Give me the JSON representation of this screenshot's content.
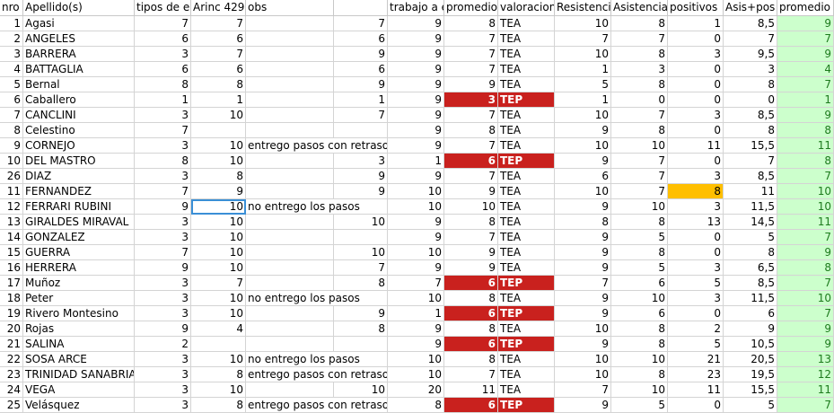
{
  "colors": {
    "green_fill": "#ccffcc",
    "green_text": "#1e7b1e",
    "tep_fill": "#c9211e",
    "highlight_orange": "#ffbf00",
    "selection": "#3a8fd6"
  },
  "headers": [
    "nro",
    "Apellido(s)",
    "tipos de en",
    "Arinc 429",
    "obs",
    "",
    "trabajo a e",
    "promedio",
    "valoracion",
    "Resistencia",
    "Asistencia",
    "positivos",
    "Asis+pos",
    "promedio"
  ],
  "rows": [
    {
      "nro": "1",
      "apellido": "Agasi",
      "tipos": "7",
      "arinc": "7",
      "obs": "",
      "obs2": "7",
      "trabajo": "9",
      "promedio": "8",
      "valoracion": "TEA",
      "resistencia": "10",
      "asistencia": "8",
      "positivos": "1",
      "asispos": "8,5",
      "promedio2": "9"
    },
    {
      "nro": "2",
      "apellido": "ANGELES",
      "tipos": "6",
      "arinc": "6",
      "obs": "",
      "obs2": "6",
      "trabajo": "9",
      "promedio": "7",
      "valoracion": "TEA",
      "resistencia": "7",
      "asistencia": "7",
      "positivos": "0",
      "asispos": "7",
      "promedio2": "7"
    },
    {
      "nro": "3",
      "apellido": "BARRERA",
      "tipos": "3",
      "arinc": "7",
      "obs": "",
      "obs2": "9",
      "trabajo": "9",
      "promedio": "7",
      "valoracion": "TEA",
      "resistencia": "10",
      "asistencia": "8",
      "positivos": "3",
      "asispos": "9,5",
      "promedio2": "9"
    },
    {
      "nro": "4",
      "apellido": "BATTAGLIA",
      "tipos": "6",
      "arinc": "6",
      "obs": "",
      "obs2": "6",
      "trabajo": "9",
      "promedio": "7",
      "valoracion": "TEA",
      "resistencia": "1",
      "asistencia": "3",
      "positivos": "0",
      "asispos": "3",
      "promedio2": "4"
    },
    {
      "nro": "5",
      "apellido": "Bernal",
      "tipos": "8",
      "arinc": "8",
      "obs": "",
      "obs2": "9",
      "trabajo": "9",
      "promedio": "9",
      "valoracion": "TEA",
      "resistencia": "5",
      "asistencia": "8",
      "positivos": "0",
      "asispos": "8",
      "promedio2": "7"
    },
    {
      "nro": "6",
      "apellido": "Caballero",
      "tipos": "1",
      "arinc": "1",
      "obs": "",
      "obs2": "1",
      "trabajo": "9",
      "promedio": "3",
      "valoracion": "TEP",
      "resistencia": "1",
      "asistencia": "0",
      "positivos": "0",
      "asispos": "0",
      "promedio2": "1"
    },
    {
      "nro": "7",
      "apellido": "CANCLINI",
      "tipos": "3",
      "arinc": "10",
      "obs": "",
      "obs2": "7",
      "trabajo": "9",
      "promedio": "7",
      "valoracion": "TEA",
      "resistencia": "10",
      "asistencia": "7",
      "positivos": "3",
      "asispos": "8,5",
      "promedio2": "9"
    },
    {
      "nro": "8",
      "apellido": "Celestino",
      "tipos": "7",
      "arinc": "",
      "obs": "",
      "obs2": "",
      "trabajo": "9",
      "promedio": "8",
      "valoracion": "TEA",
      "resistencia": "9",
      "asistencia": "8",
      "positivos": "0",
      "asispos": "8",
      "promedio2": "8"
    },
    {
      "nro": "9",
      "apellido": "CORNEJO",
      "tipos": "3",
      "arinc": "10",
      "obs": "entrego pasos con retraso",
      "obs2": "",
      "trabajo": "9",
      "promedio": "7",
      "valoracion": "TEA",
      "resistencia": "10",
      "asistencia": "10",
      "positivos": "11",
      "asispos": "15,5",
      "promedio2": "11"
    },
    {
      "nro": "10",
      "apellido": "DEL MASTRO",
      "tipos": "8",
      "arinc": "10",
      "obs": "",
      "obs2": "3",
      "trabajo": "1",
      "promedio": "6",
      "valoracion": "TEP",
      "resistencia": "9",
      "asistencia": "7",
      "positivos": "0",
      "asispos": "7",
      "promedio2": "8"
    },
    {
      "nro": "26",
      "apellido": "DIAZ",
      "tipos": "3",
      "arinc": "8",
      "obs": "",
      "obs2": "9",
      "trabajo": "9",
      "promedio": "7",
      "valoracion": "TEA",
      "resistencia": "6",
      "asistencia": "7",
      "positivos": "3",
      "asispos": "8,5",
      "promedio2": "7"
    },
    {
      "nro": "11",
      "apellido": "FERNANDEZ",
      "tipos": "7",
      "arinc": "9",
      "obs": "",
      "obs2": "9",
      "trabajo": "10",
      "promedio": "9",
      "valoracion": "TEA",
      "resistencia": "10",
      "asistencia": "7",
      "positivos": "8",
      "asispos": "11",
      "promedio2": "10"
    },
    {
      "nro": "12",
      "apellido": "FERRARI RUBINI",
      "tipos": "9",
      "arinc": "10",
      "obs": "no entrego los pasos",
      "obs2": "",
      "trabajo": "10",
      "promedio": "10",
      "valoracion": "TEA",
      "resistencia": "9",
      "asistencia": "10",
      "positivos": "3",
      "asispos": "11,5",
      "promedio2": "10"
    },
    {
      "nro": "13",
      "apellido": "GIRALDES MIRAVAL",
      "tipos": "3",
      "arinc": "10",
      "obs": "",
      "obs2": "10",
      "trabajo": "9",
      "promedio": "8",
      "valoracion": "TEA",
      "resistencia": "8",
      "asistencia": "8",
      "positivos": "13",
      "asispos": "14,5",
      "promedio2": "11"
    },
    {
      "nro": "14",
      "apellido": "GONZALEZ",
      "tipos": "3",
      "arinc": "10",
      "obs": "",
      "obs2": "",
      "trabajo": "9",
      "promedio": "7",
      "valoracion": "TEA",
      "resistencia": "9",
      "asistencia": "5",
      "positivos": "0",
      "asispos": "5",
      "promedio2": "7"
    },
    {
      "nro": "15",
      "apellido": "GUERRA",
      "tipos": "7",
      "arinc": "10",
      "obs": "",
      "obs2": "10",
      "trabajo": "10",
      "promedio": "9",
      "valoracion": "TEA",
      "resistencia": "9",
      "asistencia": "8",
      "positivos": "0",
      "asispos": "8",
      "promedio2": "9"
    },
    {
      "nro": "16",
      "apellido": "HERRERA",
      "tipos": "9",
      "arinc": "10",
      "obs": "",
      "obs2": "7",
      "trabajo": "9",
      "promedio": "9",
      "valoracion": "TEA",
      "resistencia": "9",
      "asistencia": "5",
      "positivos": "3",
      "asispos": "6,5",
      "promedio2": "8"
    },
    {
      "nro": "17",
      "apellido": "Muñoz",
      "tipos": "3",
      "arinc": "7",
      "obs": "",
      "obs2": "8",
      "trabajo": "7",
      "promedio": "6",
      "valoracion": "TEP",
      "resistencia": "7",
      "asistencia": "6",
      "positivos": "5",
      "asispos": "8,5",
      "promedio2": "7"
    },
    {
      "nro": "18",
      "apellido": "Peter",
      "tipos": "3",
      "arinc": "10",
      "obs": "no entrego los pasos",
      "obs2": "",
      "trabajo": "10",
      "promedio": "8",
      "valoracion": "TEA",
      "resistencia": "9",
      "asistencia": "10",
      "positivos": "3",
      "asispos": "11,5",
      "promedio2": "10"
    },
    {
      "nro": "19",
      "apellido": "Rivero Montesino",
      "tipos": "3",
      "arinc": "10",
      "obs": "",
      "obs2": "9",
      "trabajo": "1",
      "promedio": "6",
      "valoracion": "TEP",
      "resistencia": "9",
      "asistencia": "6",
      "positivos": "0",
      "asispos": "6",
      "promedio2": "7"
    },
    {
      "nro": "20",
      "apellido": "Rojas",
      "tipos": "9",
      "arinc": "4",
      "obs": "",
      "obs2": "8",
      "trabajo": "9",
      "promedio": "8",
      "valoracion": "TEA",
      "resistencia": "10",
      "asistencia": "8",
      "positivos": "2",
      "asispos": "9",
      "promedio2": "9"
    },
    {
      "nro": "21",
      "apellido": "SALINA",
      "tipos": "2",
      "arinc": "",
      "obs": "",
      "obs2": "",
      "trabajo": "9",
      "promedio": "6",
      "valoracion": "TEP",
      "resistencia": "9",
      "asistencia": "8",
      "positivos": "5",
      "asispos": "10,5",
      "promedio2": "9"
    },
    {
      "nro": "22",
      "apellido": "SOSA ARCE",
      "tipos": "3",
      "arinc": "10",
      "obs": "no entrego los pasos",
      "obs2": "",
      "trabajo": "10",
      "promedio": "8",
      "valoracion": "TEA",
      "resistencia": "10",
      "asistencia": "10",
      "positivos": "21",
      "asispos": "20,5",
      "promedio2": "13"
    },
    {
      "nro": "23",
      "apellido": "TRINIDAD SANABRIA",
      "tipos": "3",
      "arinc": "8",
      "obs": "entrego pasos con retraso",
      "obs2": "",
      "trabajo": "10",
      "promedio": "7",
      "valoracion": "TEA",
      "resistencia": "10",
      "asistencia": "8",
      "positivos": "23",
      "asispos": "19,5",
      "promedio2": "12"
    },
    {
      "nro": "24",
      "apellido": "VEGA",
      "tipos": "3",
      "arinc": "10",
      "obs": "",
      "obs2": "10",
      "trabajo": "20",
      "promedio": "11",
      "valoracion": "TEA",
      "resistencia": "7",
      "asistencia": "10",
      "positivos": "11",
      "asispos": "15,5",
      "promedio2": "11"
    },
    {
      "nro": "25",
      "apellido": "Velásquez",
      "tipos": "3",
      "arinc": "8",
      "obs": "entrego pasos con retraso",
      "obs2": "",
      "trabajo": "8",
      "promedio": "6",
      "valoracion": "TEP",
      "resistencia": "9",
      "asistencia": "5",
      "positivos": "0",
      "asispos": "5",
      "promedio2": "7"
    }
  ]
}
